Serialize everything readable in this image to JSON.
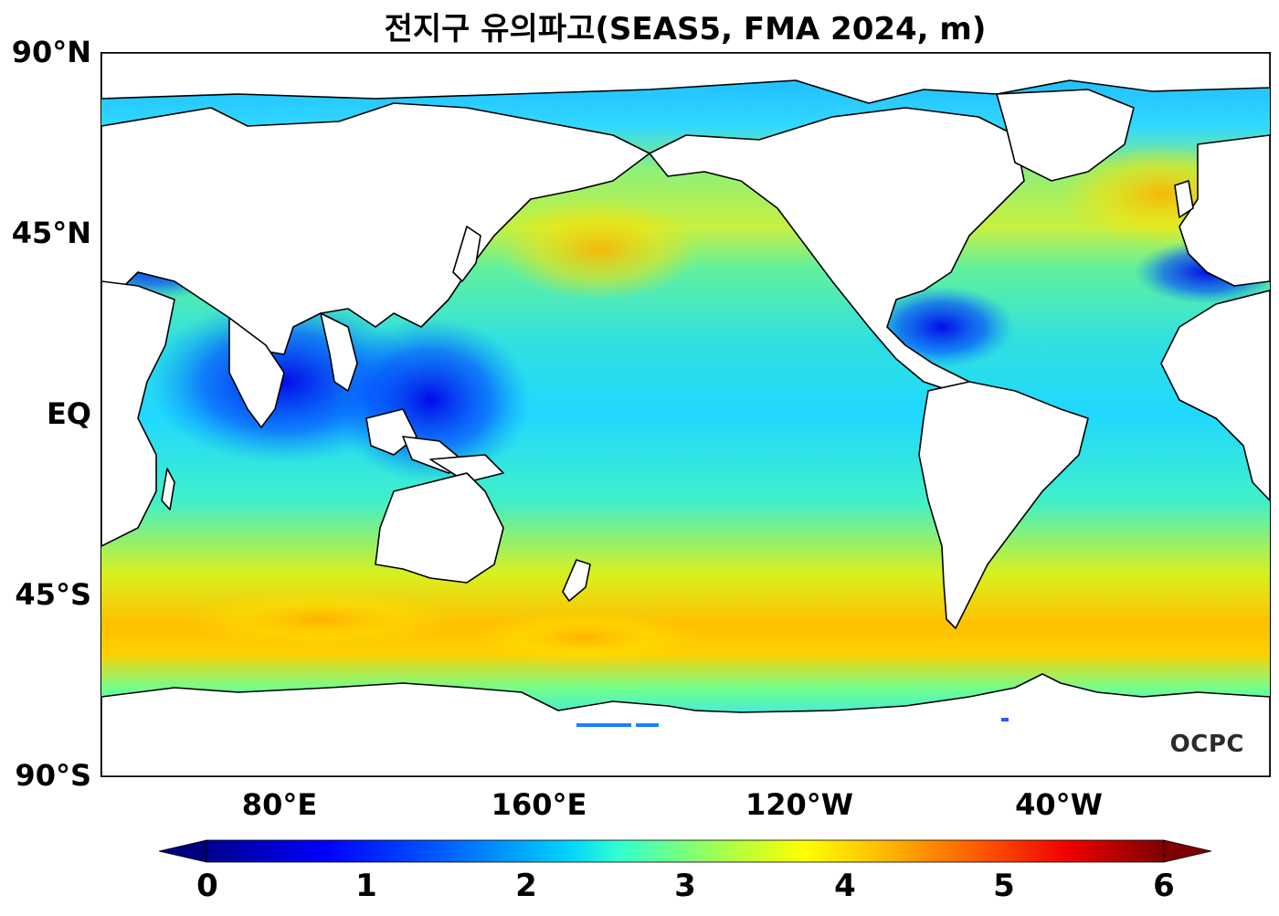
{
  "title": "전지구 유의파고(SEAS5, FMA 2024, m)",
  "watermark": "OCPC",
  "lat_labels": [
    "90°N",
    "45°N",
    "EQ",
    "45°S",
    "90°S"
  ],
  "lon_labels": [
    "80°E",
    "160°E",
    "120°W",
    "40°W"
  ],
  "colorbar": {
    "ticks": [
      "0",
      "1",
      "2",
      "3",
      "4",
      "5",
      "6"
    ],
    "min": 0,
    "max": 6,
    "extend": "both",
    "colormap": "jet",
    "colors": [
      "#00007f",
      "#0000ff",
      "#007fff",
      "#19ffe6",
      "#7fff7f",
      "#ffff00",
      "#ff7f00",
      "#ff0000",
      "#7f0000"
    ]
  },
  "colors": {
    "land": "#ffffff",
    "coastline": "#000000"
  }
}
